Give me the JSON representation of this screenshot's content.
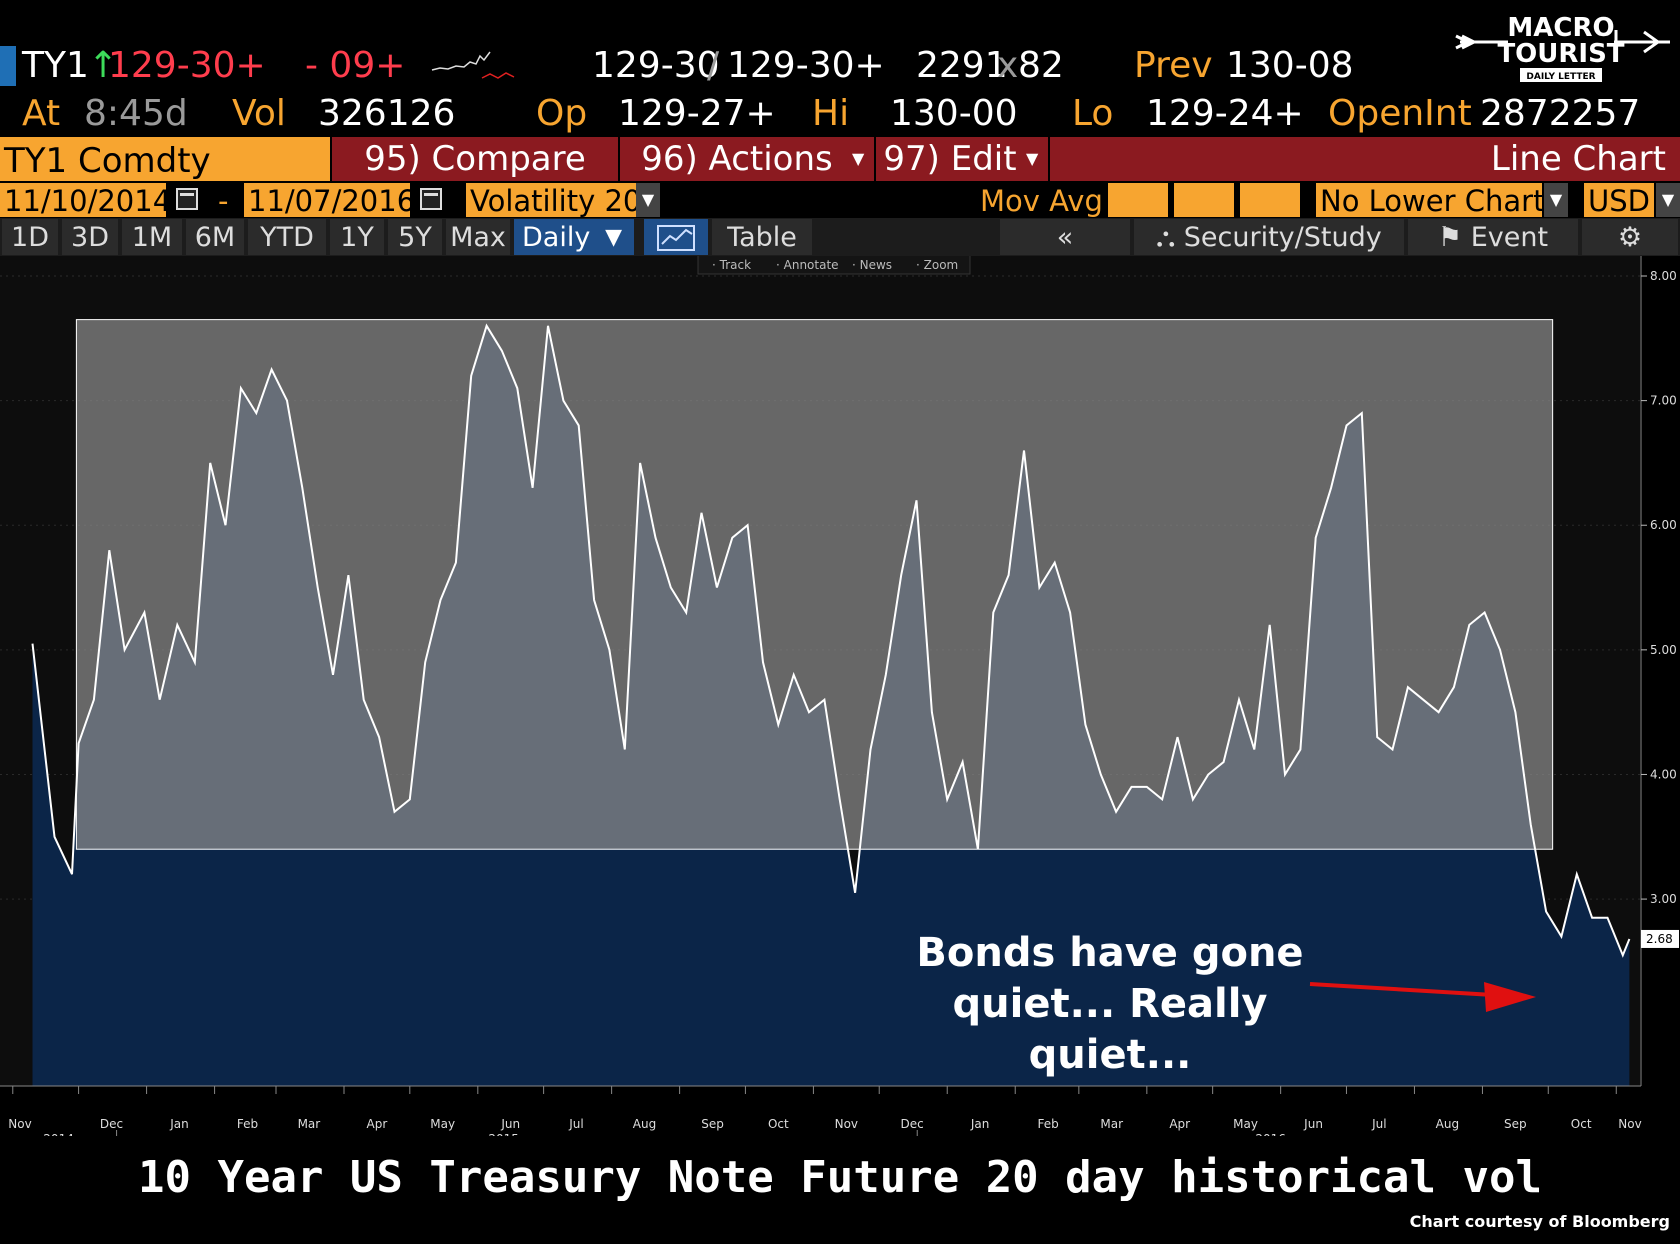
{
  "quote": {
    "ticker": "TY1",
    "last": "129-30+",
    "change": "- 09+",
    "bid": "129-30",
    "ask": "129-30+",
    "size": "2291",
    "size_x": "x",
    "size2": "82",
    "prev_label": "Prev",
    "prev": "130-08",
    "time_label": "At",
    "time": "8:45d",
    "vol_label": "Vol",
    "vol": "326126",
    "open_label": "Op",
    "open": "129-27+",
    "hi_label": "Hi",
    "hi": "130-00",
    "lo_label": "Lo",
    "lo": "129-24+",
    "oi_label": "OpenInt",
    "oi": "2872257"
  },
  "logo": {
    "line1": "MACRO",
    "line2": "TOURIST",
    "line3": "DAILY LETTER"
  },
  "command_bar": {
    "security": "TY1 Comdty",
    "compare": "95) Compare",
    "actions": "96) Actions",
    "edit": "97) Edit",
    "chart_type": "Line Chart"
  },
  "date_bar": {
    "start": "11/10/2014",
    "dash": "-",
    "end": "11/07/2016",
    "field": "Volatility 20",
    "mov_avg": "Mov Avg",
    "lower_chart": "No Lower Chart",
    "currency": "USD"
  },
  "period_bar": {
    "periods": [
      "1D",
      "3D",
      "1M",
      "6M",
      "YTD",
      "1Y",
      "5Y",
      "Max"
    ],
    "frequency": "Daily",
    "table": "Table",
    "back": "«",
    "security_study": "Security/Study",
    "event": "Event"
  },
  "chart_tools": [
    "Track",
    "Annotate",
    "News",
    "Zoom"
  ],
  "annotation": {
    "line1": "Bonds have gone",
    "line2": "quiet... Really",
    "line3": "quiet..."
  },
  "footer": {
    "title": "10 Year US Treasury Note Future 20 day historical vol",
    "credit": "Chart courtesy of Bloomberg"
  },
  "colors": {
    "accent": "#f7a530",
    "command_bar": "#8b1a20",
    "chart_fill": "#0b2548",
    "band": "#6b6b6b",
    "line": "#ffffff",
    "arrow": "#e01010"
  },
  "chart_data": {
    "type": "area",
    "title": "",
    "xlabel": "",
    "ylabel": "",
    "ylim": [
      1.5,
      8.0
    ],
    "y_ticks": [
      "8.00",
      "7.00",
      "6.00",
      "5.00",
      "4.00",
      "3.00"
    ],
    "last_value_label": "2.68",
    "highlighted_range": [
      3.4,
      7.65
    ],
    "x_ticks": [
      "Nov",
      "Dec",
      "Jan",
      "Feb",
      "Mar",
      "Apr",
      "May",
      "Jun",
      "Jul",
      "Aug",
      "Sep",
      "Oct",
      "Nov",
      "Dec",
      "Jan",
      "Feb",
      "Mar",
      "Apr",
      "May",
      "Jun",
      "Jul",
      "Aug",
      "Sep",
      "Oct",
      "Nov"
    ],
    "x_years": [
      "2014",
      "2015",
      "2016"
    ],
    "x": [
      "2014-11-10",
      "2014-11-20",
      "2014-11-28",
      "2014-12-01",
      "2014-12-08",
      "2014-12-15",
      "2014-12-22",
      "2014-12-31",
      "2015-01-07",
      "2015-01-15",
      "2015-01-23",
      "2015-01-30",
      "2015-02-06",
      "2015-02-13",
      "2015-02-20",
      "2015-02-27",
      "2015-03-06",
      "2015-03-13",
      "2015-03-20",
      "2015-03-27",
      "2015-04-03",
      "2015-04-10",
      "2015-04-17",
      "2015-04-24",
      "2015-05-01",
      "2015-05-08",
      "2015-05-15",
      "2015-05-22",
      "2015-05-29",
      "2015-06-05",
      "2015-06-12",
      "2015-06-19",
      "2015-06-26",
      "2015-07-03",
      "2015-07-10",
      "2015-07-17",
      "2015-07-24",
      "2015-07-31",
      "2015-08-07",
      "2015-08-14",
      "2015-08-21",
      "2015-08-28",
      "2015-09-04",
      "2015-09-11",
      "2015-09-18",
      "2015-09-25",
      "2015-10-02",
      "2015-10-09",
      "2015-10-16",
      "2015-10-23",
      "2015-10-30",
      "2015-11-06",
      "2015-11-13",
      "2015-11-20",
      "2015-11-27",
      "2015-12-04",
      "2015-12-11",
      "2015-12-18",
      "2015-12-25",
      "2016-01-01",
      "2016-01-08",
      "2016-01-15",
      "2016-01-22",
      "2016-01-29",
      "2016-02-05",
      "2016-02-12",
      "2016-02-19",
      "2016-02-26",
      "2016-03-04",
      "2016-03-11",
      "2016-03-18",
      "2016-03-25",
      "2016-04-01",
      "2016-04-08",
      "2016-04-15",
      "2016-04-22",
      "2016-04-29",
      "2016-05-06",
      "2016-05-13",
      "2016-05-20",
      "2016-05-27",
      "2016-06-03",
      "2016-06-10",
      "2016-06-17",
      "2016-06-24",
      "2016-07-01",
      "2016-07-08",
      "2016-07-15",
      "2016-07-22",
      "2016-07-29",
      "2016-08-05",
      "2016-08-12",
      "2016-08-19",
      "2016-08-26",
      "2016-09-02",
      "2016-09-09",
      "2016-09-16",
      "2016-09-23",
      "2016-09-30",
      "2016-10-07",
      "2016-10-14",
      "2016-10-21",
      "2016-10-28",
      "2016-11-04",
      "2016-11-07"
    ],
    "series": [
      {
        "values": [
          5.05,
          3.5,
          3.2,
          4.25,
          4.6,
          5.8,
          5.0,
          5.3,
          4.6,
          5.2,
          4.9,
          6.5,
          6.0,
          7.1,
          6.9,
          7.25,
          7.0,
          6.3,
          5.5,
          4.8,
          5.6,
          4.6,
          4.3,
          3.7,
          3.8,
          4.9,
          5.4,
          5.7,
          7.2,
          7.6,
          7.4,
          7.1,
          6.3,
          7.6,
          7.0,
          6.8,
          5.4,
          5.0,
          4.2,
          6.5,
          5.9,
          5.5,
          5.3,
          6.1,
          5.5,
          5.9,
          6.0,
          4.9,
          4.4,
          4.8,
          4.5,
          4.6,
          3.8,
          3.05,
          4.2,
          4.8,
          5.6,
          6.2,
          4.5,
          3.8,
          4.1,
          3.4,
          5.3,
          5.6,
          6.6,
          5.5,
          5.7,
          5.3,
          4.4,
          4.0,
          3.7,
          3.9,
          3.9,
          3.8,
          4.3,
          3.8,
          4.0,
          4.1,
          4.6,
          4.2,
          5.2,
          4.0,
          4.2,
          5.9,
          6.3,
          6.8,
          6.9,
          4.3,
          4.2,
          4.7,
          4.6,
          4.5,
          4.7,
          5.2,
          5.3,
          5.0,
          4.5,
          3.6,
          2.9,
          2.7,
          3.2,
          2.85,
          2.85,
          2.55,
          2.68
        ]
      }
    ]
  }
}
